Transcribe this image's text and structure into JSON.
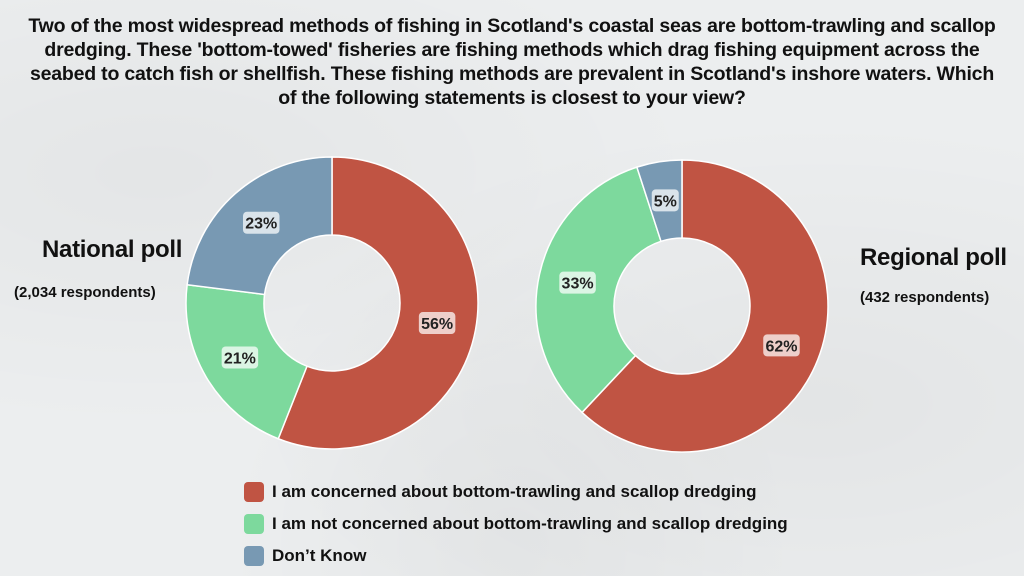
{
  "title": "Two of the most widespread methods of fishing in Scotland's coastal seas are bottom-trawling and scallop dredging. These 'bottom-towed' fisheries are fishing methods which drag fishing equipment across the seabed to catch fish or shellfish. These fishing methods are prevalent in Scotland's inshore waters. Which of the following statements is closest to your view?",
  "national": {
    "title": "National poll",
    "subtitle": "(2,034 respondents)"
  },
  "regional": {
    "title": "Regional poll",
    "subtitle": "(432 respondents)"
  },
  "colors": {
    "concerned": "#c05443",
    "not_concerned": "#7dd99d",
    "dont_know": "#7899b3"
  },
  "legend": [
    {
      "label": "I am concerned about bottom-trawling and scallop dredging",
      "color": "#c05443"
    },
    {
      "label": "I am not concerned about bottom-trawling and scallop dredging",
      "color": "#7dd99d"
    },
    {
      "label": "Don’t Know",
      "color": "#7899b3"
    }
  ],
  "chart_data": [
    {
      "type": "pie",
      "title": "National poll",
      "categories": [
        "I am concerned about bottom-trawling and scallop dredging",
        "I am not concerned about bottom-trawling and scallop dredging",
        "Don’t Know"
      ],
      "values": [
        56,
        21,
        23
      ],
      "labels": [
        "56%",
        "21%",
        "23%"
      ],
      "colors": [
        "#c05443",
        "#7dd99d",
        "#7899b3"
      ]
    },
    {
      "type": "pie",
      "title": "Regional poll",
      "categories": [
        "I am concerned about bottom-trawling and scallop dredging",
        "I am not concerned about bottom-trawling and scallop dredging",
        "Don’t Know"
      ],
      "values": [
        62,
        33,
        5
      ],
      "labels": [
        "62%",
        "33%",
        "5%"
      ],
      "colors": [
        "#c05443",
        "#7dd99d",
        "#7899b3"
      ]
    }
  ]
}
